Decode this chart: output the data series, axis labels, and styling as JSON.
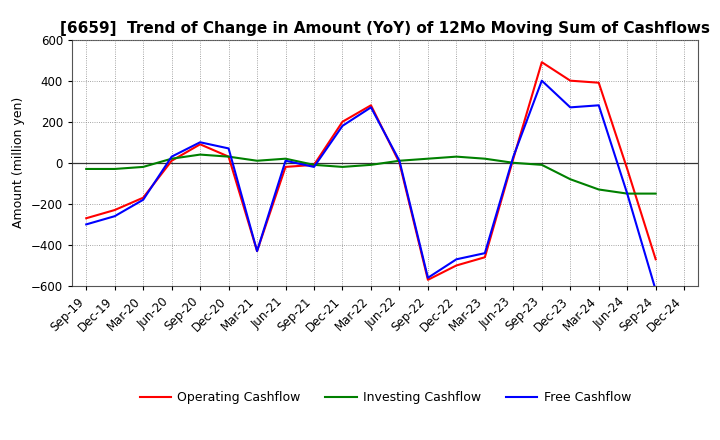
{
  "title": "[6659]  Trend of Change in Amount (YoY) of 12Mo Moving Sum of Cashflows",
  "ylabel": "Amount (million yen)",
  "x_labels": [
    "Sep-19",
    "Dec-19",
    "Mar-20",
    "Jun-20",
    "Sep-20",
    "Dec-20",
    "Mar-21",
    "Jun-21",
    "Sep-21",
    "Dec-21",
    "Mar-22",
    "Jun-22",
    "Sep-22",
    "Dec-22",
    "Mar-23",
    "Jun-23",
    "Sep-23",
    "Dec-23",
    "Mar-24",
    "Jun-24",
    "Sep-24",
    "Dec-24"
  ],
  "operating": [
    -270,
    -230,
    -170,
    10,
    90,
    30,
    -430,
    -20,
    -10,
    200,
    280,
    0,
    -570,
    -500,
    -460,
    20,
    490,
    400,
    390,
    -30,
    -470,
    null
  ],
  "investing": [
    -30,
    -30,
    -20,
    20,
    40,
    30,
    10,
    20,
    -10,
    -20,
    -10,
    10,
    20,
    30,
    20,
    0,
    -10,
    -80,
    -130,
    -150,
    -150,
    null
  ],
  "free": [
    -300,
    -260,
    -180,
    30,
    100,
    70,
    -430,
    10,
    -20,
    180,
    270,
    10,
    -560,
    -470,
    -440,
    30,
    400,
    270,
    280,
    -150,
    -620,
    null
  ],
  "operating_color": "#ff0000",
  "investing_color": "#008000",
  "free_color": "#0000ff",
  "ylim": [
    -600,
    600
  ],
  "yticks": [
    -600,
    -400,
    -200,
    0,
    200,
    400,
    600
  ],
  "title_fontsize": 11,
  "axis_fontsize": 8.5,
  "ylabel_fontsize": 9,
  "legend_fontsize": 9,
  "linewidth": 1.5
}
